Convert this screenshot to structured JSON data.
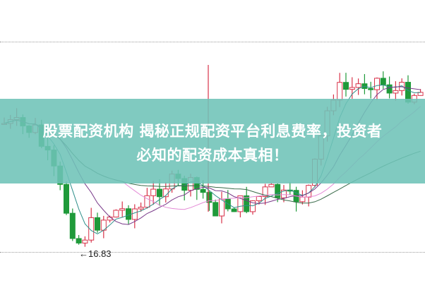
{
  "article": {
    "title_line1": "股票配资机构 揭秘正规配资平台利息费率，投资者",
    "title_line2": "必知的配资成本真相！"
  },
  "chart": {
    "low_marker": "←16.83",
    "colors": {
      "up": "#d8334a",
      "down": "#1f9a3a",
      "banner": "#6ec3b7",
      "ma_teal": "#2f8f8a",
      "ma_dark": "#3a6b4a",
      "ma_purple": "#7a3b8a",
      "ma_pink": "#e48ad6"
    }
  }
}
